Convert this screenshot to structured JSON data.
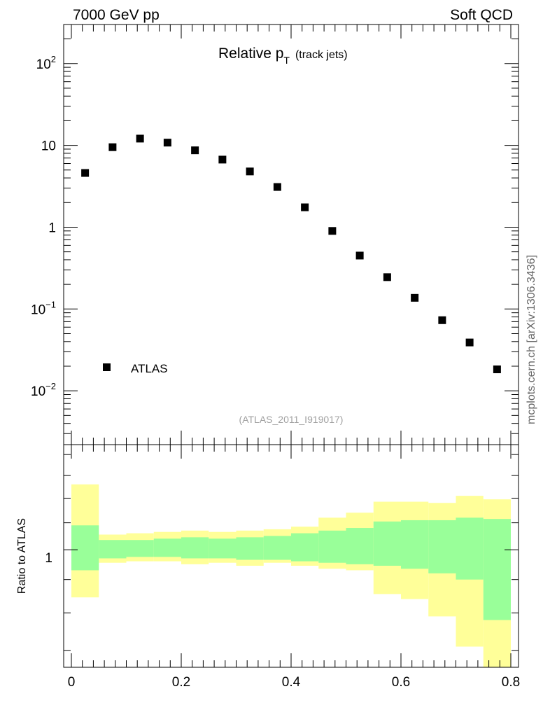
{
  "header": {
    "left": "7000 GeV pp",
    "right": "Soft QCD",
    "side": "mcplots.cern.ch [arXiv:1306.3436]"
  },
  "chart_data": {
    "type": "scatter",
    "title_main": "Relative p",
    "title_sub": "T",
    "title_extra": "(track jets)",
    "analysis_label": "(ATLAS_2011_I919017)",
    "yscale": "log",
    "xlim": [
      0,
      0.8
    ],
    "ylim": [
      0.0022,
      300
    ],
    "x_ticks": [
      "0",
      "0.2",
      "0.4",
      "0.6",
      "0.8"
    ],
    "x_tick_values": [
      0,
      0.2,
      0.4,
      0.6,
      0.8
    ],
    "y_ticks": [
      {
        "base": "10",
        "exp": "2",
        "value": 100
      },
      {
        "base": "10",
        "exp": "",
        "value": 10
      },
      {
        "base": "1",
        "exp": "",
        "value": 1
      },
      {
        "base": "10",
        "exp": "−1",
        "value": 0.1
      },
      {
        "base": "10",
        "exp": "−2",
        "value": 0.01
      }
    ],
    "legend": {
      "entry": "ATLAS",
      "placement": "bottom-left"
    },
    "series": [
      {
        "name": "ATLAS",
        "color": "#000000",
        "x": [
          0.025,
          0.075,
          0.125,
          0.175,
          0.225,
          0.275,
          0.325,
          0.375,
          0.425,
          0.475,
          0.525,
          0.575,
          0.625,
          0.675,
          0.725,
          0.775
        ],
        "y": [
          4.6,
          9.5,
          12.1,
          10.8,
          8.7,
          6.7,
          4.8,
          3.1,
          1.75,
          0.9,
          0.45,
          0.245,
          0.137,
          0.073,
          0.039,
          0.0183
        ]
      }
    ],
    "ratio": {
      "ylabel": "Ratio to ATLAS",
      "ylim": [
        0.66,
        1.45
      ],
      "ytick_label": "1",
      "bin_edges": [
        0,
        0.05,
        0.1,
        0.15,
        0.2,
        0.25,
        0.3,
        0.35,
        0.4,
        0.45,
        0.5,
        0.55,
        0.6,
        0.65,
        0.7,
        0.75,
        0.8
      ],
      "green_band": {
        "color": "#99ff99",
        "low": [
          0.93,
          0.97,
          0.975,
          0.975,
          0.97,
          0.97,
          0.965,
          0.965,
          0.96,
          0.955,
          0.95,
          0.945,
          0.935,
          0.92,
          0.9,
          0.78
        ],
        "high": [
          1.09,
          1.035,
          1.035,
          1.04,
          1.045,
          1.04,
          1.045,
          1.05,
          1.06,
          1.07,
          1.08,
          1.105,
          1.11,
          1.11,
          1.12,
          1.115
        ]
      },
      "yellow_band": {
        "color": "#ffff99",
        "low": [
          0.845,
          0.955,
          0.96,
          0.96,
          0.95,
          0.955,
          0.945,
          0.955,
          0.945,
          0.935,
          0.93,
          0.855,
          0.84,
          0.79,
          0.71,
          0.61
        ],
        "high": [
          1.26,
          1.055,
          1.06,
          1.065,
          1.07,
          1.065,
          1.07,
          1.075,
          1.085,
          1.12,
          1.14,
          1.185,
          1.185,
          1.18,
          1.21,
          1.195
        ]
      }
    }
  }
}
